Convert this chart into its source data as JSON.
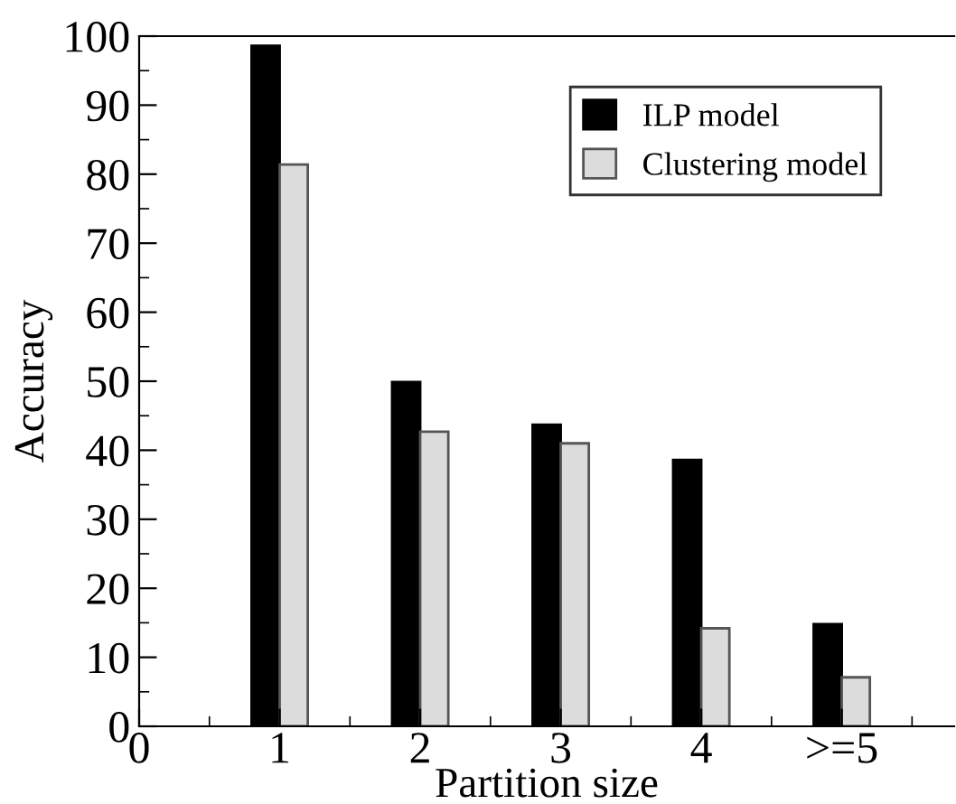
{
  "chart_data": {
    "type": "bar",
    "xlabel": "Partition size",
    "ylabel": "Accuracy",
    "x": [
      1,
      2,
      3,
      4,
      5
    ],
    "series": [
      {
        "name": "ILP model",
        "color": "#000000",
        "values": [
          98.6,
          49.9,
          43.7,
          38.6,
          14.8
        ]
      },
      {
        "name": "Clustering model",
        "color": "#dcdcdc",
        "values": [
          81.4,
          42.7,
          41.0,
          14.2,
          7.1
        ]
      }
    ],
    "xlim": [
      0,
      5.8
    ],
    "xticks": [
      0,
      {
        "value": 0.5,
        "label": null
      },
      1,
      {
        "value": 1.5,
        "label": null
      },
      2,
      {
        "value": 2.5,
        "label": null
      },
      3,
      {
        "value": 3.5,
        "label": null
      },
      4,
      {
        "value": 4.5,
        "label": null
      },
      {
        "value": 5,
        "label": ">=5"
      },
      {
        "value": 5.5,
        "label": null
      }
    ],
    "ylim": [
      0,
      100
    ],
    "yticks": [
      0,
      {
        "value": 5,
        "label": null
      },
      10,
      {
        "value": 15,
        "label": null
      },
      20,
      {
        "value": 25,
        "label": null
      },
      30,
      {
        "value": 35,
        "label": null
      },
      40,
      {
        "value": 45,
        "label": null
      },
      50,
      {
        "value": 55,
        "label": null
      },
      60,
      {
        "value": 65,
        "label": null
      },
      70,
      {
        "value": 75,
        "label": null
      },
      80,
      {
        "value": 85,
        "label": null
      },
      90,
      {
        "value": 95,
        "label": null
      },
      100
    ],
    "legend": "top right",
    "grid": false
  }
}
